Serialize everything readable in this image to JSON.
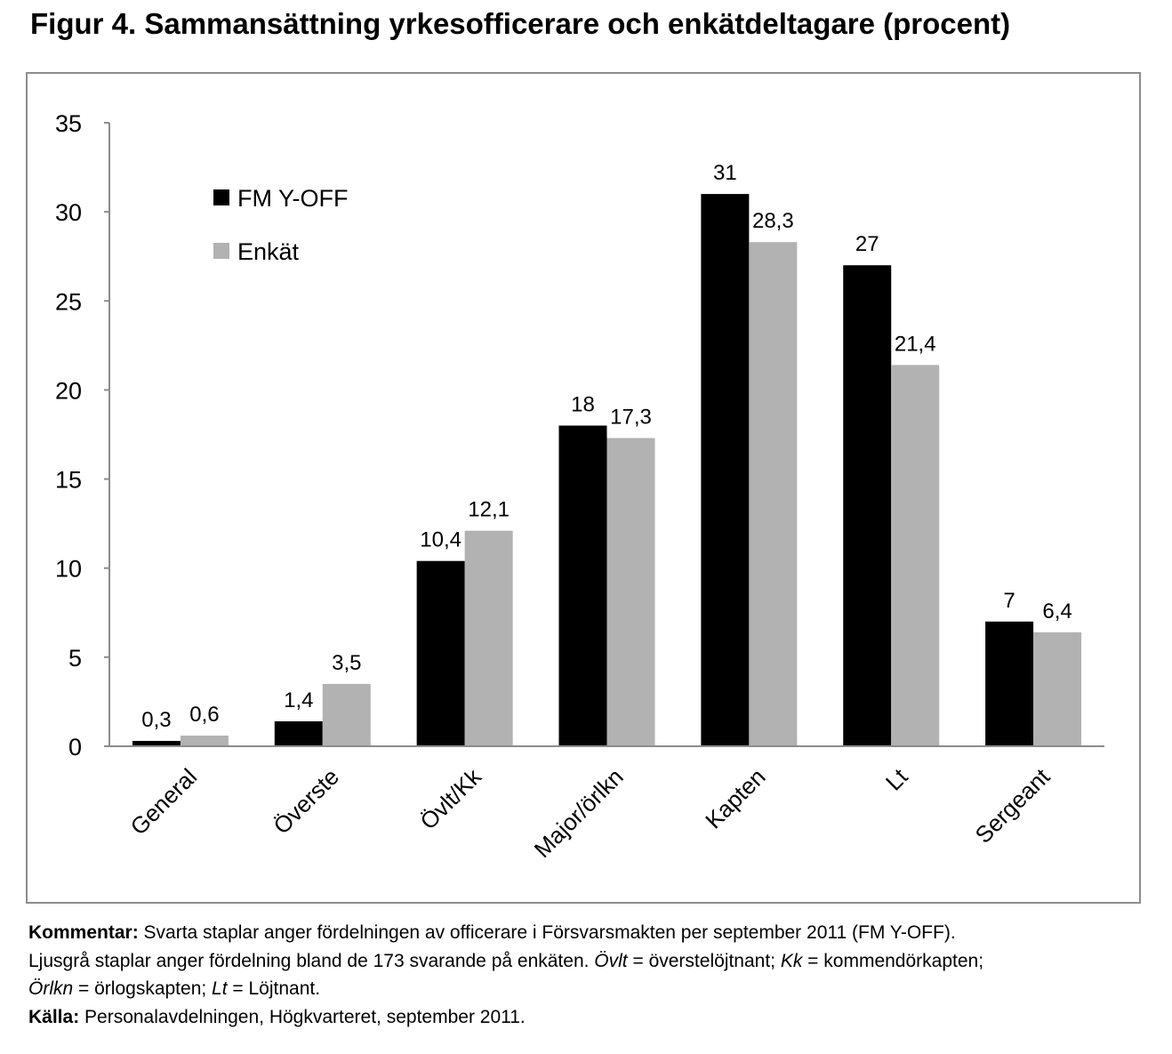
{
  "figure": {
    "title": "Figur 4. Sammansättning yrkesofficerare och enkätdeltagare (procent)"
  },
  "chart_data": {
    "type": "bar",
    "categories": [
      "General",
      "Överste",
      "Övlt/Kk",
      "Major/örlkn",
      "Kapten",
      "Lt",
      "Sergeant"
    ],
    "series": [
      {
        "name": "FM Y-OFF",
        "color": "#000000",
        "values": [
          0.3,
          1.4,
          10.4,
          18,
          31,
          27,
          7
        ],
        "labels": [
          "0,3",
          "1,4",
          "10,4",
          "18",
          "31",
          "27",
          "7"
        ]
      },
      {
        "name": "Enkät",
        "color": "#b2b2b2",
        "values": [
          0.6,
          3.5,
          12.1,
          17.3,
          28.3,
          21.4,
          6.4
        ],
        "labels": [
          "0,6",
          "3,5",
          "12,1",
          "17,3",
          "28,3",
          "21,4",
          "6,4"
        ]
      }
    ],
    "ylim": [
      0,
      35
    ],
    "yticks": [
      0,
      5,
      10,
      15,
      20,
      25,
      30,
      35
    ],
    "xlabel": "",
    "ylabel": "",
    "grid": false,
    "legend_position": "top-left"
  },
  "notes": {
    "comment_label": "Kommentar:",
    "comment_line1": "Svarta staplar anger fördelningen av officerare i Försvarsmakten per september 2011 (FM Y-OFF).",
    "comment_line2_a": "Ljusgrå staplar anger fördelning bland de 173 svarande på enkäten.  ",
    "abbr_ovlt": "Övlt",
    "def_ovlt": " = överstelöjtnant; ",
    "abbr_kk": "Kk",
    "def_kk": " = kommendörkapten;",
    "abbr_orlkn": "Örlkn",
    "def_orlkn": " = örlogskapten; ",
    "abbr_lt": "Lt",
    "def_lt": " = Löjtnant.",
    "source_label": "Källa:",
    "source_text": " Personalavdelningen, Högkvarteret, september 2011."
  }
}
